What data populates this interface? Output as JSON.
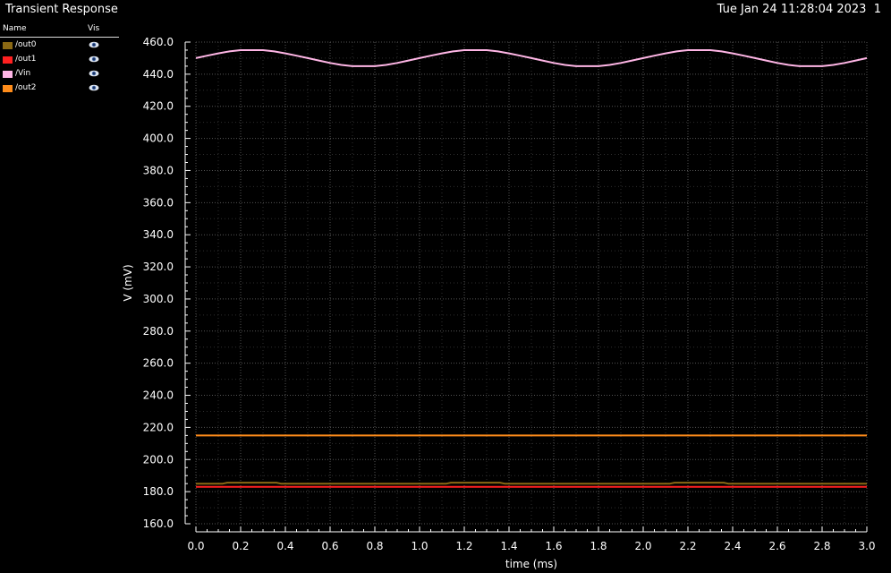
{
  "header": {
    "title": "Transient Response",
    "datetime": "Tue Jan 24 11:28:04 2023",
    "page": "1"
  },
  "legend": {
    "col_name": "Name",
    "col_vis": "Vis",
    "items": [
      {
        "name": "/out0",
        "color": "#8b6914",
        "visible": true,
        "icon": "eye-icon"
      },
      {
        "name": "/out1",
        "color": "#ff2020",
        "visible": true,
        "icon": "eye-icon"
      },
      {
        "name": "/Vin",
        "color": "#ffb6e6",
        "visible": true,
        "icon": "eye-icon"
      },
      {
        "name": "/out2",
        "color": "#ff8c1a",
        "visible": true,
        "icon": "eye-icon"
      }
    ]
  },
  "chart_data": {
    "type": "line",
    "xlabel": "time (ms)",
    "ylabel": "V (mV)",
    "xlim": [
      0.0,
      3.0
    ],
    "ylim": [
      160.0,
      460.0
    ],
    "xticks": [
      "0.0",
      "0.2",
      "0.4",
      "0.6",
      "0.8",
      "1.0",
      "1.2",
      "1.4",
      "1.6",
      "1.8",
      "2.0",
      "2.2",
      "2.4",
      "2.6",
      "2.8",
      "3.0"
    ],
    "yticks": [
      "160.0",
      "180.0",
      "200.0",
      "220.0",
      "240.0",
      "260.0",
      "280.0",
      "300.0",
      "320.0",
      "340.0",
      "360.0",
      "380.0",
      "400.0",
      "420.0",
      "440.0",
      "460.0"
    ],
    "grid": true,
    "series": [
      {
        "name": "/Vin",
        "color": "#ffb6e6",
        "x": [
          0.0,
          0.05,
          0.1,
          0.15,
          0.2,
          0.25,
          0.3,
          0.35,
          0.4,
          0.45,
          0.5,
          0.55,
          0.6,
          0.65,
          0.7,
          0.75,
          0.8,
          0.85,
          0.9,
          0.95,
          1.0,
          1.05,
          1.1,
          1.15,
          1.2,
          1.25,
          1.3,
          1.35,
          1.4,
          1.45,
          1.5,
          1.55,
          1.6,
          1.65,
          1.7,
          1.75,
          1.8,
          1.85,
          1.9,
          1.95,
          2.0,
          2.05,
          2.1,
          2.15,
          2.2,
          2.25,
          2.3,
          2.35,
          2.4,
          2.45,
          2.5,
          2.55,
          2.6,
          2.65,
          2.7,
          2.75,
          2.8,
          2.85,
          2.9,
          2.95,
          3.0
        ],
        "y": [
          450.0,
          451.5,
          453.0,
          454.2,
          455.0,
          455.0,
          455.0,
          454.2,
          453.0,
          451.5,
          450.0,
          448.5,
          447.0,
          445.8,
          445.0,
          445.0,
          445.0,
          445.8,
          447.0,
          448.5,
          450.0,
          451.5,
          453.0,
          454.2,
          455.0,
          455.0,
          455.0,
          454.2,
          453.0,
          451.5,
          450.0,
          448.5,
          447.0,
          445.8,
          445.0,
          445.0,
          445.0,
          445.8,
          447.0,
          448.5,
          450.0,
          451.5,
          453.0,
          454.2,
          455.0,
          455.0,
          455.0,
          454.2,
          453.0,
          451.5,
          450.0,
          448.5,
          447.0,
          445.8,
          445.0,
          445.0,
          445.0,
          445.8,
          447.0,
          448.5,
          450.0
        ]
      },
      {
        "name": "/out2",
        "color": "#ff8c1a",
        "x": [
          0.0,
          3.0
        ],
        "y": [
          215.0,
          215.0
        ]
      },
      {
        "name": "/out0",
        "color": "#8b6914",
        "x": [
          0.0,
          0.12,
          0.14,
          0.36,
          0.38,
          1.12,
          1.14,
          1.36,
          1.38,
          2.12,
          2.14,
          2.36,
          2.38,
          3.0
        ],
        "y": [
          185.0,
          185.0,
          185.6,
          185.6,
          185.0,
          185.0,
          185.6,
          185.6,
          185.0,
          185.0,
          185.6,
          185.6,
          185.0,
          185.0
        ]
      },
      {
        "name": "/out1",
        "color": "#ff2020",
        "x": [
          0.0,
          3.0
        ],
        "y": [
          183.0,
          183.0
        ]
      }
    ]
  }
}
